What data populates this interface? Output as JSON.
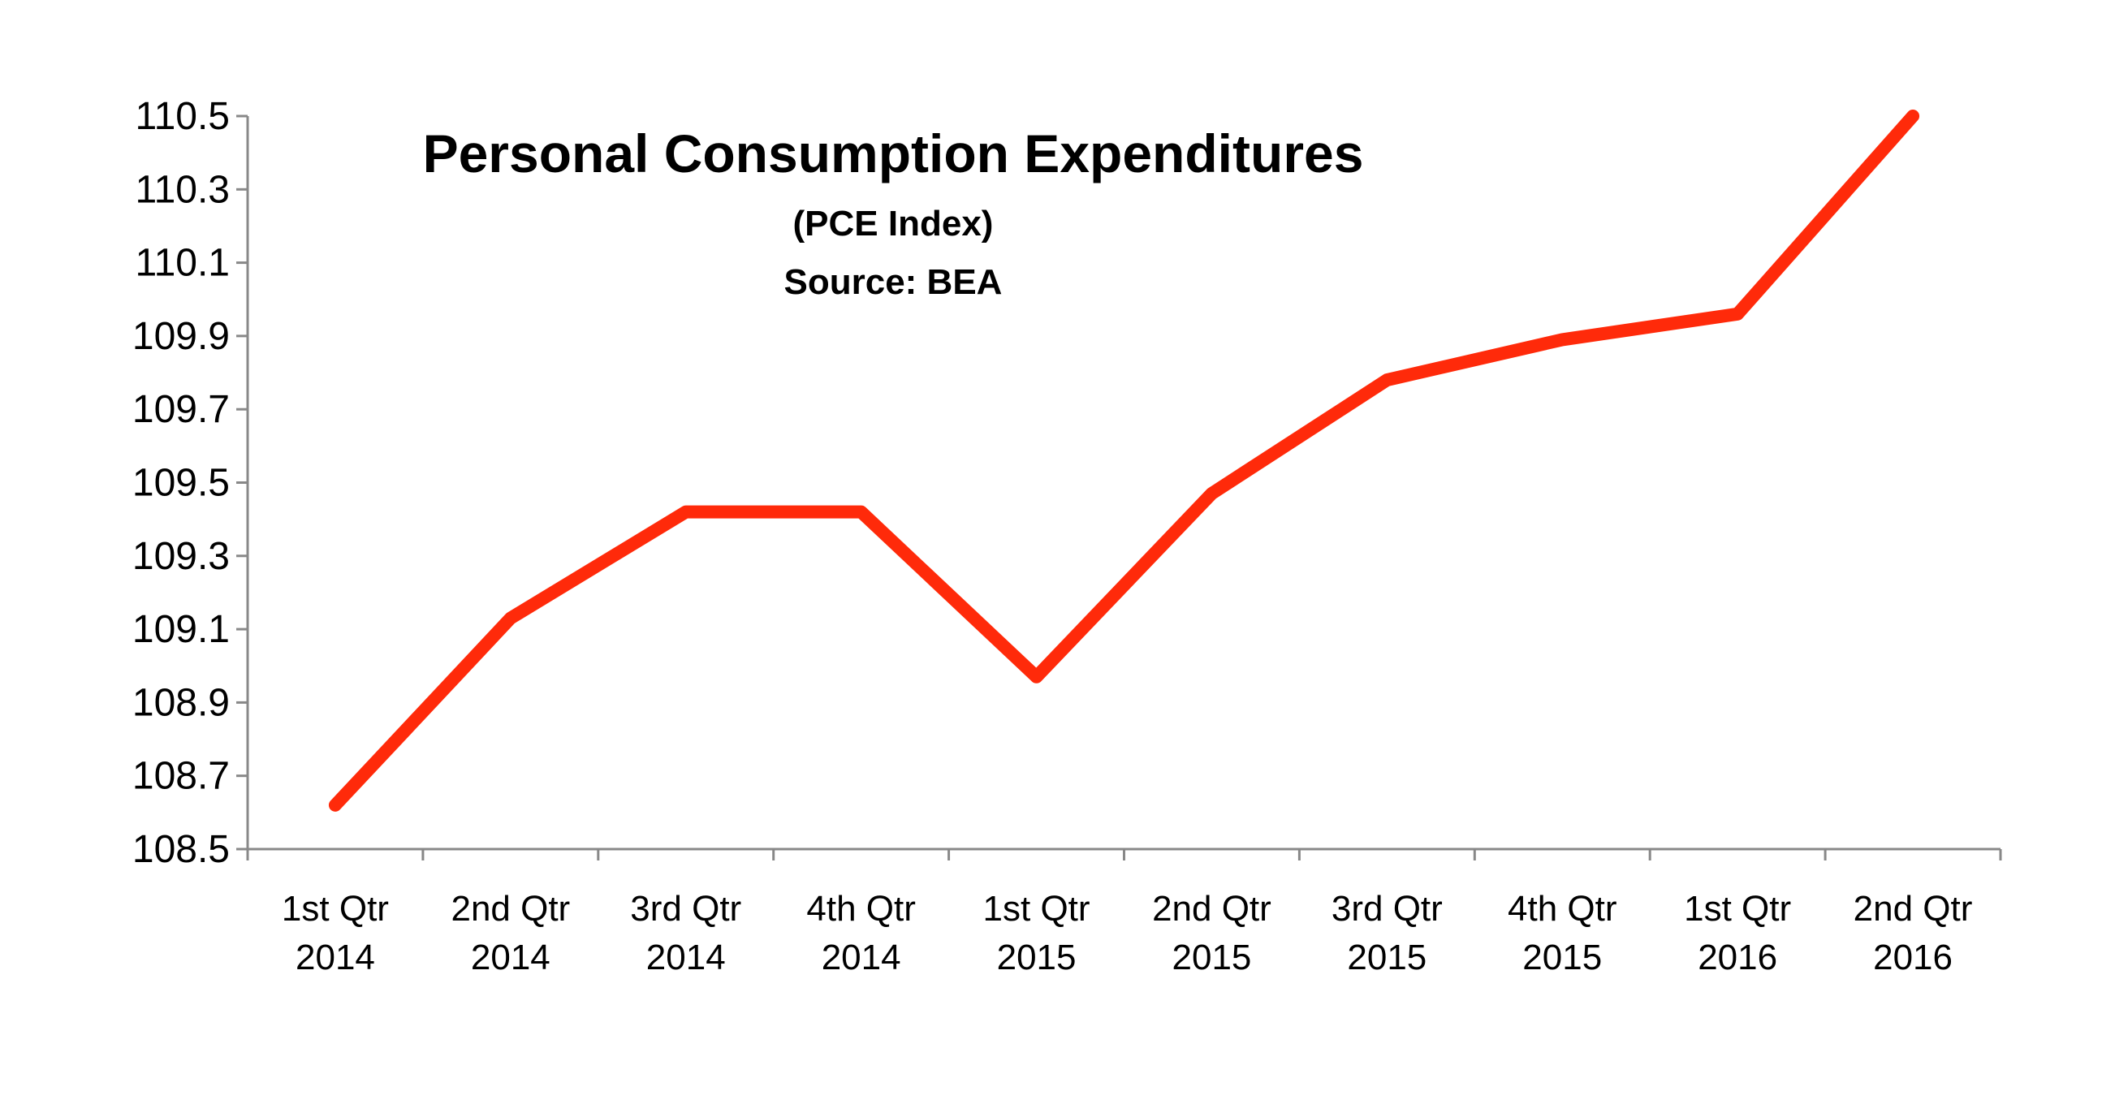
{
  "chart_data": {
    "type": "line",
    "title": "Personal Consumption Expenditures",
    "subtitle_lines": [
      "(PCE Index)",
      "Source: BEA"
    ],
    "xlabel": "",
    "ylabel": "",
    "ylim": [
      108.5,
      110.5
    ],
    "yticks": [
      "108.5",
      "108.7",
      "108.9",
      "109.1",
      "109.3",
      "109.5",
      "109.7",
      "109.9",
      "110.1",
      "110.3",
      "110.5"
    ],
    "categories": [
      [
        "1st Qtr",
        "2014"
      ],
      [
        "2nd Qtr",
        "2014"
      ],
      [
        "3rd Qtr",
        "2014"
      ],
      [
        "4th Qtr",
        "2014"
      ],
      [
        "1st Qtr",
        "2015"
      ],
      [
        "2nd Qtr",
        "2015"
      ],
      [
        "3rd Qtr",
        "2015"
      ],
      [
        "4th Qtr",
        "2015"
      ],
      [
        "1st Qtr",
        "2016"
      ],
      [
        "2nd Qtr",
        "2016"
      ]
    ],
    "series": [
      {
        "values": [
          108.62,
          109.13,
          109.42,
          109.42,
          108.97,
          109.47,
          109.78,
          109.89,
          109.96,
          110.5
        ],
        "color": "#ff2a0a"
      }
    ],
    "grid": false,
    "legend": "none"
  }
}
